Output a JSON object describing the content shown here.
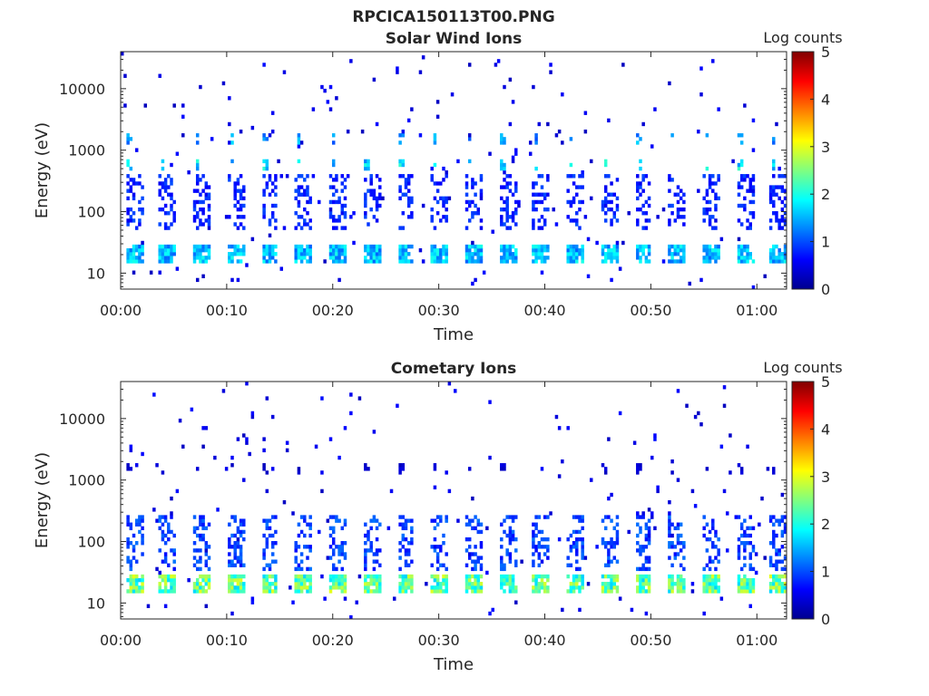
{
  "figure_title": "RPCICA150113T00.PNG",
  "chart_data": [
    {
      "type": "heatmap",
      "title": "Solar Wind Ions",
      "xlabel": "Time",
      "ylabel": "Energy (eV)",
      "x_tick_labels": [
        "00:00",
        "00:10",
        "00:20",
        "00:30",
        "00:40",
        "00:50",
        "01:00"
      ],
      "x_ticks_minutes": [
        0,
        10,
        20,
        30,
        40,
        50,
        60
      ],
      "xlim_minutes": [
        0,
        62.8
      ],
      "y_scale": "log",
      "ylim_eV": [
        5.5,
        40000
      ],
      "y_tick_labels": [
        "10",
        "100",
        "1000",
        "10000"
      ],
      "y_ticks_eV": [
        10,
        100,
        1000,
        10000
      ],
      "colorbar": {
        "label": "Log counts",
        "range": [
          0,
          5
        ],
        "tick_labels": [
          "0",
          "1",
          "2",
          "3",
          "4",
          "5"
        ],
        "colormap": "jet"
      },
      "sweep_period_minutes": 3.2,
      "bands": [
        {
          "energy_eV": 20,
          "peak_log_counts": 2.0,
          "description": "low-energy band present every sweep"
        },
        {
          "energy_eV": 1600,
          "peak_log_counts": 1.8,
          "description": "solar wind proton band, intermittent"
        },
        {
          "energy_eV": 600,
          "peak_log_counts": 2.2,
          "description": "solar wind alpha band, intermittent"
        },
        {
          "energy_eV": 150,
          "peak_log_counts": 1.0,
          "description": "scattered mid-energy counts"
        }
      ],
      "grid": false,
      "background": "white (no counts)"
    },
    {
      "type": "heatmap",
      "title": "Cometary Ions",
      "xlabel": "Time",
      "ylabel": "Energy (eV)",
      "x_tick_labels": [
        "00:00",
        "00:10",
        "00:20",
        "00:30",
        "00:40",
        "00:50",
        "01:00"
      ],
      "x_ticks_minutes": [
        0,
        10,
        20,
        30,
        40,
        50,
        60
      ],
      "xlim_minutes": [
        0,
        62.8
      ],
      "y_scale": "log",
      "ylim_eV": [
        5.5,
        40000
      ],
      "y_tick_labels": [
        "10",
        "100",
        "1000",
        "10000"
      ],
      "y_ticks_eV": [
        10,
        100,
        1000,
        10000
      ],
      "colorbar": {
        "label": "Log counts",
        "range": [
          0,
          5
        ],
        "tick_labels": [
          "0",
          "1",
          "2",
          "3",
          "4",
          "5"
        ],
        "colormap": "jet"
      },
      "sweep_period_minutes": 3.2,
      "bands": [
        {
          "energy_eV": 20,
          "peak_log_counts": 3.0,
          "description": "intense low-energy cometary ions every sweep"
        },
        {
          "energy_eV": 100,
          "peak_log_counts": 1.2,
          "description": "plumes extending to several hundred eV"
        },
        {
          "energy_eV": 1600,
          "peak_log_counts": 0.5,
          "description": "faint counts near 1.6 keV"
        }
      ],
      "grid": false,
      "background": "white (no counts)"
    }
  ]
}
